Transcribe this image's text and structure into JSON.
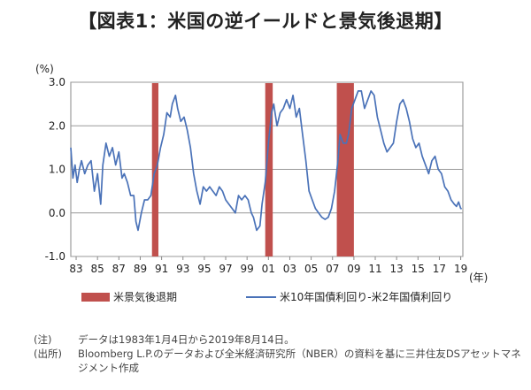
{
  "title": "【図表1：米国の逆イールドと景気後退期】",
  "chart_data": {
    "type": "area",
    "ylabel": "(%)",
    "xlabel_unit": "(年)",
    "ylim": [
      -1.0,
      3.0
    ],
    "yticks": [
      "3.0",
      "2.0",
      "1.0",
      "0.0",
      "-1.0"
    ],
    "xlim": [
      1983.0,
      2019.7
    ],
    "xtick_labels": [
      "83",
      "85",
      "87",
      "89",
      "91",
      "93",
      "95",
      "97",
      "99",
      "01",
      "03",
      "05",
      "07",
      "09",
      "11",
      "13",
      "15",
      "17",
      "19"
    ],
    "grid": true,
    "legend_placement": "bottom",
    "recessions": [
      [
        1990.6,
        1991.2
      ],
      [
        2001.2,
        2001.9
      ],
      [
        2007.9,
        2009.5
      ]
    ],
    "series": [
      {
        "name": "米10年国債利回り-米2年国債利回り",
        "x": [
          1983.0,
          1983.2,
          1983.4,
          1983.6,
          1983.8,
          1984.0,
          1984.3,
          1984.6,
          1984.9,
          1985.2,
          1985.5,
          1985.8,
          1986.0,
          1986.3,
          1986.6,
          1986.9,
          1987.2,
          1987.5,
          1987.8,
          1988.0,
          1988.3,
          1988.6,
          1988.9,
          1989.1,
          1989.3,
          1989.6,
          1989.9,
          1990.2,
          1990.5,
          1990.8,
          1991.1,
          1991.4,
          1991.7,
          1992.0,
          1992.3,
          1992.5,
          1992.8,
          1993.0,
          1993.3,
          1993.6,
          1993.9,
          1994.2,
          1994.5,
          1994.8,
          1995.1,
          1995.4,
          1995.7,
          1996.0,
          1996.3,
          1996.6,
          1996.9,
          1997.2,
          1997.5,
          1997.8,
          1998.1,
          1998.4,
          1998.7,
          1999.0,
          1999.3,
          1999.6,
          1999.9,
          2000.1,
          2000.4,
          2000.7,
          2000.9,
          2001.2,
          2001.5,
          2001.8,
          2002.0,
          2002.3,
          2002.6,
          2002.9,
          2003.2,
          2003.5,
          2003.8,
          2004.1,
          2004.4,
          2004.7,
          2005.0,
          2005.3,
          2005.6,
          2005.9,
          2006.2,
          2006.5,
          2006.8,
          2007.1,
          2007.4,
          2007.7,
          2008.0,
          2008.2,
          2008.5,
          2008.8,
          2009.0,
          2009.3,
          2009.6,
          2009.9,
          2010.2,
          2010.5,
          2010.8,
          2011.1,
          2011.4,
          2011.7,
          2012.0,
          2012.3,
          2012.6,
          2012.9,
          2013.2,
          2013.5,
          2013.8,
          2014.1,
          2014.4,
          2014.7,
          2015.0,
          2015.3,
          2015.6,
          2015.9,
          2016.2,
          2016.5,
          2016.8,
          2017.1,
          2017.4,
          2017.7,
          2018.0,
          2018.3,
          2018.6,
          2018.9,
          2019.1,
          2019.3,
          2019.5,
          2019.6
        ],
        "values": [
          1.5,
          0.8,
          1.1,
          0.7,
          1.0,
          1.2,
          0.9,
          1.1,
          1.2,
          0.5,
          0.9,
          0.2,
          1.1,
          1.6,
          1.3,
          1.5,
          1.1,
          1.4,
          0.8,
          0.9,
          0.7,
          0.4,
          0.4,
          -0.2,
          -0.4,
          0.0,
          0.3,
          0.3,
          0.4,
          0.9,
          1.1,
          1.5,
          1.8,
          2.3,
          2.2,
          2.5,
          2.7,
          2.4,
          2.1,
          2.2,
          1.9,
          1.5,
          0.9,
          0.5,
          0.2,
          0.6,
          0.5,
          0.6,
          0.5,
          0.4,
          0.6,
          0.5,
          0.3,
          0.2,
          0.1,
          0.0,
          0.4,
          0.3,
          0.4,
          0.3,
          0.0,
          -0.1,
          -0.4,
          -0.3,
          0.2,
          0.7,
          1.6,
          2.3,
          2.5,
          2.0,
          2.3,
          2.4,
          2.6,
          2.4,
          2.7,
          2.2,
          2.4,
          1.8,
          1.2,
          0.5,
          0.3,
          0.1,
          0.0,
          -0.1,
          -0.15,
          -0.1,
          0.1,
          0.5,
          1.2,
          1.8,
          1.6,
          1.6,
          1.8,
          2.4,
          2.6,
          2.8,
          2.8,
          2.4,
          2.6,
          2.8,
          2.7,
          2.2,
          1.9,
          1.6,
          1.4,
          1.5,
          1.6,
          2.1,
          2.5,
          2.6,
          2.4,
          2.1,
          1.7,
          1.5,
          1.6,
          1.3,
          1.1,
          0.9,
          1.2,
          1.3,
          1.0,
          0.9,
          0.6,
          0.5,
          0.3,
          0.2,
          0.15,
          0.25,
          0.1,
          0.1
        ]
      },
      {
        "name": "米景気後退期"
      }
    ]
  },
  "notes": [
    {
      "label": "(注)",
      "text": "データは1983年1月4日から2019年8月14日。"
    },
    {
      "label": "(出所)",
      "text": "Bloomberg L.P.のデータおよび全米経済研究所（NBER）の資料を基に三井住友DSアセットマネジメント作成"
    }
  ],
  "colors": {
    "line": "#4a72b8",
    "recession": "#c0504d",
    "grid": "#999999"
  }
}
